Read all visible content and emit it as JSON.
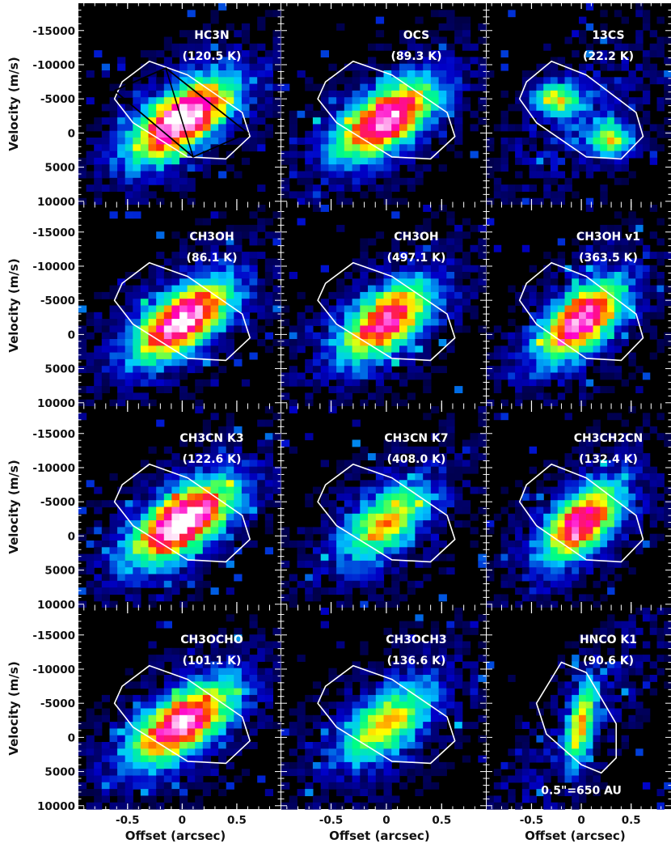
{
  "chart_data": {
    "type": "heatmap",
    "description_grid": "4 rows x 3 columns of position-velocity diagrams",
    "xlabel": "Offset (arcsec)",
    "ylabel": "Velocity (m/s)",
    "xlim": [
      -0.95,
      0.9
    ],
    "ylim": [
      10500,
      -19000
    ],
    "x_ticks": [
      -0.5,
      0,
      0.5
    ],
    "x_tick_labels": [
      "-0.5",
      "0",
      "0.5"
    ],
    "y_ticks": [
      -15000,
      -10000,
      -5000,
      0,
      5000,
      10000
    ],
    "y_tick_labels": [
      "-15000",
      "-10000",
      "-5000",
      "0",
      "5000",
      "10000"
    ],
    "colormap": [
      "#000000",
      "#0000c8",
      "#00c8ff",
      "#00ff80",
      "#ffff00",
      "#ff3000",
      "#ff00c8",
      "#ffffff"
    ],
    "contour_color": "#ffffff",
    "model_curve_color": "#000000",
    "scale_label": "0.5\"=650 AU",
    "panels": [
      {
        "species": "HC3N",
        "temp": "(120.5 K)",
        "peak": 1.0,
        "width": 0.95
      },
      {
        "species": "OCS",
        "temp": "(89.3 K)",
        "peak": 0.9,
        "width": 0.9
      },
      {
        "species": "13CS",
        "temp": "(22.2 K)",
        "peak": 0.5,
        "width": 0.85
      },
      {
        "species": "CH3OH",
        "temp": "(86.1 K)",
        "peak": 0.93,
        "width": 0.9
      },
      {
        "species": "CH3OH",
        "temp": "(497.1 K)",
        "peak": 0.8,
        "width": 0.85
      },
      {
        "species": "CH3OH v1",
        "temp": "(363.5 K)",
        "peak": 0.88,
        "width": 0.85
      },
      {
        "species": "CH3CN K3",
        "temp": "(122.6 K)",
        "peak": 1.0,
        "width": 0.95
      },
      {
        "species": "CH3CN K7",
        "temp": "(408.0 K)",
        "peak": 0.55,
        "width": 0.8
      },
      {
        "species": "CH3CH2CN",
        "temp": "(132.4 K)",
        "peak": 0.8,
        "width": 0.8
      },
      {
        "species": "CH3OCHO",
        "temp": "(101.1 K)",
        "peak": 0.9,
        "width": 0.95
      },
      {
        "species": "CH3OCH3",
        "temp": "(136.6 K)",
        "peak": 0.55,
        "width": 0.85
      },
      {
        "species": "HNCO K1",
        "temp": "(90.6 K)",
        "peak": 0.6,
        "width": 0.6
      }
    ]
  }
}
